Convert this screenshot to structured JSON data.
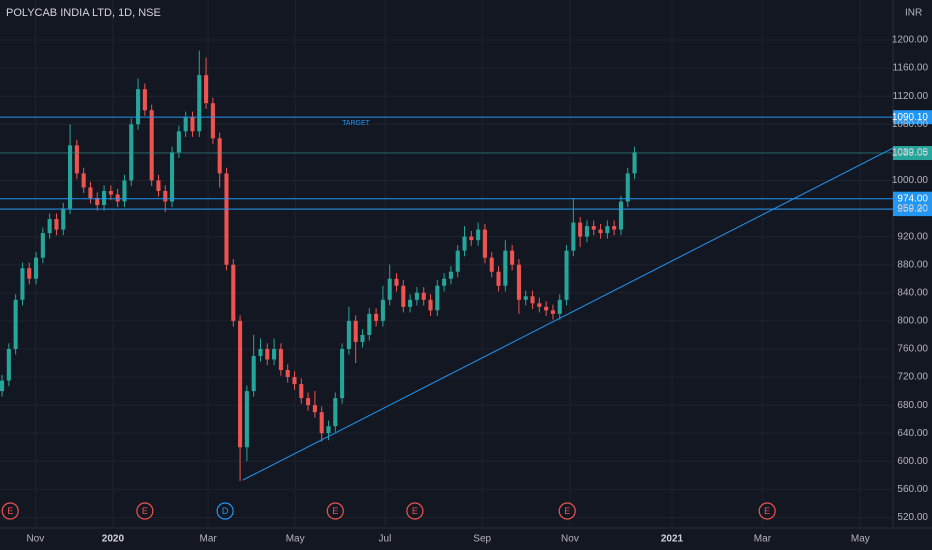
{
  "chart_data": {
    "type": "candlestick",
    "title": "POLYCAB INDIA LTD, 1D, NSE",
    "currency": "INR",
    "annotation": "TARGET",
    "up_color": "#26a69a",
    "down_color": "#ef5350",
    "grid": true,
    "xlim": [
      -0.3,
      131
    ],
    "xticks": [
      {
        "value": 4.9,
        "label": "Nov"
      },
      {
        "value": 16.3,
        "label": "2020"
      },
      {
        "value": 30.3,
        "label": "Mar"
      },
      {
        "value": 43.1,
        "label": "May"
      },
      {
        "value": 56.3,
        "label": "Jul"
      },
      {
        "value": 70.6,
        "label": "Sep"
      },
      {
        "value": 83.5,
        "label": "Nov"
      },
      {
        "value": 98.5,
        "label": "2021"
      },
      {
        "value": 111.8,
        "label": "Mar"
      },
      {
        "value": 126.2,
        "label": "May"
      }
    ],
    "ylim": [
      505,
      1257
    ],
    "yticks": [
      {
        "value": 520,
        "label": "520.00"
      },
      {
        "value": 560,
        "label": "560.00"
      },
      {
        "value": 600,
        "label": "600.00"
      },
      {
        "value": 640,
        "label": "640.00"
      },
      {
        "value": 680,
        "label": "680.00"
      },
      {
        "value": 720,
        "label": "720.00"
      },
      {
        "value": 760,
        "label": "760.00"
      },
      {
        "value": 800,
        "label": "800.00"
      },
      {
        "value": 840,
        "label": "840.00"
      },
      {
        "value": 880,
        "label": "880.00"
      },
      {
        "value": 920,
        "label": "920.00"
      },
      {
        "value": 960,
        "label": "960.00"
      },
      {
        "value": 1000,
        "label": "1000.00"
      },
      {
        "value": 1040,
        "label": "1040.00"
      },
      {
        "value": 1080,
        "label": "1080.00"
      },
      {
        "value": 1120,
        "label": "1120.00"
      },
      {
        "value": 1160,
        "label": "1160.00"
      },
      {
        "value": 1200,
        "label": "1200.00"
      }
    ],
    "levels": [
      {
        "value": 1090.1,
        "label": "1090.10",
        "color": "#2196f3"
      },
      {
        "value": 1039.05,
        "label": "1039.05",
        "color": "#26a69a"
      },
      {
        "value": 974,
        "label": "974.00",
        "color": "#2196f3"
      },
      {
        "value": 959.2,
        "label": "959.20",
        "color": "#2196f3"
      }
    ],
    "events": [
      {
        "x": 1.2,
        "label": "E",
        "color": "#ef5350"
      },
      {
        "x": 21.0,
        "label": "E",
        "color": "#ef5350"
      },
      {
        "x": 32.8,
        "label": "D",
        "color": "#2196f3"
      },
      {
        "x": 49.0,
        "label": "E",
        "color": "#ef5350"
      },
      {
        "x": 60.7,
        "label": "E",
        "color": "#ef5350"
      },
      {
        "x": 83.1,
        "label": "E",
        "color": "#ef5350"
      },
      {
        "x": 112.5,
        "label": "E",
        "color": "#ef5350"
      }
    ],
    "candles": [
      [
        700,
        723,
        692,
        715
      ],
      [
        715,
        768,
        707,
        760
      ],
      [
        760,
        838,
        752,
        830
      ],
      [
        830,
        883,
        822,
        875
      ],
      [
        875,
        883,
        852,
        860
      ],
      [
        860,
        898,
        852,
        890
      ],
      [
        890,
        933,
        882,
        925
      ],
      [
        925,
        953,
        917,
        945
      ],
      [
        945,
        953,
        922,
        930
      ],
      [
        930,
        968,
        922,
        960
      ],
      [
        960,
        1080,
        952,
        1050
      ],
      [
        1050,
        1058,
        1002,
        1010
      ],
      [
        1010,
        1018,
        982,
        990
      ],
      [
        990,
        998,
        967,
        975
      ],
      [
        975,
        983,
        957,
        965
      ],
      [
        965,
        993,
        957,
        985
      ],
      [
        985,
        993,
        972,
        980
      ],
      [
        980,
        988,
        962,
        970
      ],
      [
        970,
        1008,
        962,
        1000
      ],
      [
        1000,
        1088,
        992,
        1080
      ],
      [
        1080,
        1145,
        1072,
        1130
      ],
      [
        1130,
        1138,
        1092,
        1100
      ],
      [
        1100,
        1108,
        992,
        1000
      ],
      [
        1000,
        1008,
        977,
        985
      ],
      [
        985,
        993,
        955,
        970
      ],
      [
        970,
        1048,
        962,
        1040
      ],
      [
        1040,
        1078,
        1032,
        1070
      ],
      [
        1070,
        1098,
        1062,
        1090
      ],
      [
        1090,
        1098,
        1062,
        1070
      ],
      [
        1070,
        1185,
        1062,
        1150
      ],
      [
        1150,
        1175,
        1102,
        1110
      ],
      [
        1110,
        1118,
        1052,
        1060
      ],
      [
        1060,
        1068,
        990,
        1010
      ],
      [
        1010,
        1018,
        872,
        880
      ],
      [
        880,
        888,
        792,
        800
      ],
      [
        800,
        808,
        572,
        620
      ],
      [
        620,
        708,
        600,
        700
      ],
      [
        700,
        780,
        692,
        750
      ],
      [
        750,
        775,
        742,
        760
      ],
      [
        760,
        768,
        737,
        745
      ],
      [
        745,
        775,
        737,
        760
      ],
      [
        760,
        768,
        722,
        730
      ],
      [
        730,
        738,
        712,
        720
      ],
      [
        720,
        728,
        702,
        710
      ],
      [
        710,
        718,
        682,
        690
      ],
      [
        690,
        698,
        672,
        680
      ],
      [
        680,
        700,
        662,
        670
      ],
      [
        670,
        678,
        628,
        640
      ],
      [
        640,
        658,
        630,
        650
      ],
      [
        650,
        698,
        642,
        690
      ],
      [
        690,
        768,
        682,
        760
      ],
      [
        760,
        820,
        752,
        800
      ],
      [
        800,
        808,
        740,
        770
      ],
      [
        770,
        788,
        762,
        780
      ],
      [
        780,
        818,
        772,
        810
      ],
      [
        810,
        818,
        792,
        800
      ],
      [
        800,
        850,
        792,
        830
      ],
      [
        830,
        880,
        822,
        860
      ],
      [
        860,
        868,
        842,
        850
      ],
      [
        850,
        858,
        812,
        820
      ],
      [
        820,
        838,
        812,
        830
      ],
      [
        830,
        848,
        822,
        840
      ],
      [
        840,
        848,
        822,
        830
      ],
      [
        830,
        838,
        807,
        815
      ],
      [
        815,
        858,
        807,
        850
      ],
      [
        850,
        868,
        842,
        860
      ],
      [
        860,
        878,
        852,
        870
      ],
      [
        870,
        908,
        862,
        900
      ],
      [
        900,
        935,
        892,
        920
      ],
      [
        920,
        928,
        907,
        915
      ],
      [
        915,
        940,
        907,
        930
      ],
      [
        930,
        938,
        882,
        890
      ],
      [
        890,
        898,
        862,
        870
      ],
      [
        870,
        878,
        842,
        850
      ],
      [
        850,
        915,
        842,
        900
      ],
      [
        900,
        908,
        872,
        880
      ],
      [
        880,
        888,
        810,
        830
      ],
      [
        830,
        843,
        822,
        835
      ],
      [
        835,
        843,
        817,
        825
      ],
      [
        825,
        833,
        812,
        820
      ],
      [
        820,
        828,
        807,
        815
      ],
      [
        815,
        823,
        802,
        810
      ],
      [
        810,
        838,
        802,
        830
      ],
      [
        830,
        908,
        822,
        900
      ],
      [
        900,
        975,
        892,
        940
      ],
      [
        940,
        948,
        905,
        920
      ],
      [
        920,
        943,
        912,
        935
      ],
      [
        935,
        943,
        922,
        930
      ],
      [
        930,
        938,
        917,
        925
      ],
      [
        925,
        943,
        917,
        935
      ],
      [
        935,
        943,
        922,
        930
      ],
      [
        930,
        978,
        922,
        970
      ],
      [
        970,
        1018,
        962,
        1010
      ],
      [
        1010,
        1048,
        1002,
        1040
      ]
    ]
  }
}
